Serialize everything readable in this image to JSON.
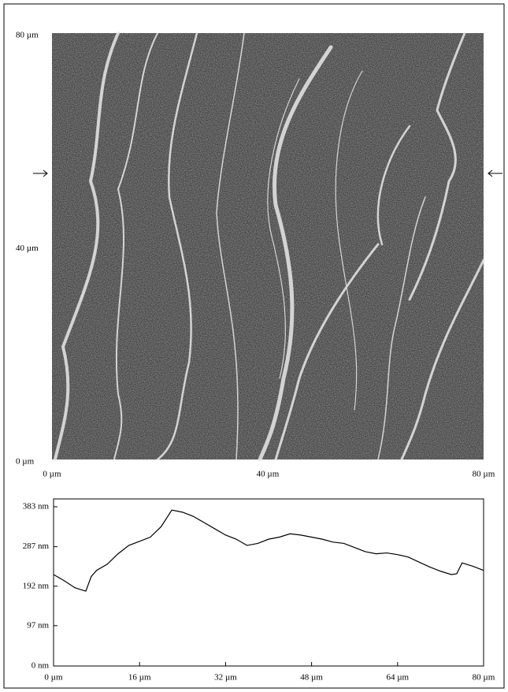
{
  "chart_data": [
    {
      "type": "image",
      "xlim": [
        0,
        80
      ],
      "ylim": [
        0,
        80
      ],
      "xticks": [
        {
          "value": 0,
          "label": "0 µm"
        },
        {
          "value": 40,
          "label": "40 µm"
        },
        {
          "value": 80,
          "label": "80 µm"
        }
      ],
      "yticks": [
        {
          "value": 0,
          "label": "0 µm"
        },
        {
          "value": 40,
          "label": "40 µm"
        },
        {
          "value": 80,
          "label": "80 µm"
        }
      ]
    },
    {
      "type": "line",
      "color": "#000000",
      "xlim": [
        0,
        80
      ],
      "ylim": [
        0,
        383
      ],
      "xticks": [
        {
          "value": 0,
          "label": "0 µm"
        },
        {
          "value": 16,
          "label": "16 µm"
        },
        {
          "value": 32,
          "label": "32 µm"
        },
        {
          "value": 48,
          "label": "48 µm"
        },
        {
          "value": 64,
          "label": "64 µm"
        },
        {
          "value": 80,
          "label": "80 µm"
        }
      ],
      "yticks": [
        {
          "value": 0,
          "label": "0 nm"
        },
        {
          "value": 97,
          "label": "97 nm"
        },
        {
          "value": 192,
          "label": "192 nm"
        },
        {
          "value": 287,
          "label": "287 nm"
        },
        {
          "value": 383,
          "label": "383 nm"
        }
      ],
      "x": [
        0,
        2,
        4,
        6,
        7,
        8,
        10,
        12,
        14,
        16,
        18,
        20,
        22,
        24,
        26,
        28,
        30,
        32,
        34,
        36,
        38,
        40,
        42,
        44,
        46,
        48,
        50,
        52,
        54,
        56,
        58,
        60,
        62,
        64,
        66,
        68,
        70,
        72,
        74,
        75,
        76,
        78,
        80
      ],
      "values": [
        220,
        205,
        188,
        180,
        215,
        230,
        245,
        270,
        290,
        300,
        310,
        335,
        375,
        370,
        360,
        345,
        330,
        315,
        305,
        290,
        295,
        305,
        310,
        318,
        315,
        310,
        305,
        298,
        295,
        285,
        275,
        270,
        272,
        268,
        262,
        250,
        238,
        228,
        220,
        222,
        248,
        240,
        230
      ]
    }
  ]
}
